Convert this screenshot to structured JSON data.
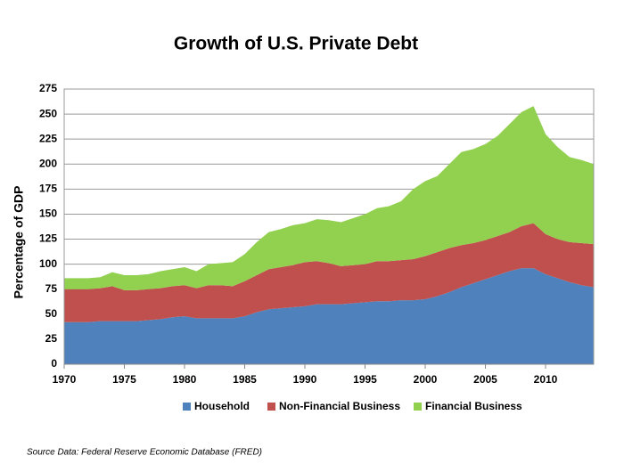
{
  "chart_data": {
    "type": "stacked_area",
    "title": "Growth of U.S. Private Debt",
    "y_label": "Percentage of GDP",
    "source": "Source Data:  Federal Reserve Economic Database (FRED)",
    "x": [
      1970,
      1971,
      1972,
      1973,
      1974,
      1975,
      1976,
      1977,
      1978,
      1979,
      1980,
      1981,
      1982,
      1983,
      1984,
      1985,
      1986,
      1987,
      1988,
      1989,
      1990,
      1991,
      1992,
      1993,
      1994,
      1995,
      1996,
      1997,
      1998,
      1999,
      2000,
      2001,
      2002,
      2003,
      2004,
      2005,
      2006,
      2007,
      2008,
      2009,
      2010,
      2011,
      2012,
      2013,
      2014
    ],
    "series": [
      {
        "name": "Household",
        "color": "#4f81bd",
        "values": [
          42,
          42,
          42,
          43,
          43,
          43,
          43,
          44,
          45,
          47,
          48,
          46,
          46,
          46,
          46,
          48,
          52,
          55,
          56,
          57,
          58,
          60,
          60,
          60,
          61,
          62,
          63,
          63,
          64,
          64,
          65,
          68,
          72,
          77,
          81,
          85,
          89,
          93,
          96,
          96,
          90,
          86,
          82,
          79,
          77
        ]
      },
      {
        "name": "Non-Financial Business",
        "color": "#c0504d",
        "values": [
          33,
          33,
          33,
          33,
          35,
          31,
          31,
          31,
          31,
          31,
          31,
          30,
          33,
          33,
          32,
          35,
          37,
          40,
          41,
          42,
          44,
          43,
          41,
          38,
          38,
          38,
          40,
          40,
          40,
          41,
          43,
          44,
          44,
          42,
          40,
          39,
          39,
          39,
          42,
          45,
          40,
          39,
          40,
          42,
          43
        ]
      },
      {
        "name": "Financial Business",
        "color": "#92d050",
        "values": [
          11,
          11,
          11,
          11,
          14,
          15,
          15,
          15,
          17,
          17,
          18,
          17,
          21,
          22,
          24,
          27,
          33,
          37,
          38,
          40,
          39,
          42,
          43,
          44,
          47,
          50,
          53,
          55,
          59,
          70,
          75,
          76,
          84,
          93,
          94,
          96,
          100,
          108,
          114,
          117,
          100,
          92,
          85,
          83,
          80
        ]
      }
    ],
    "xlim": [
      1970,
      2014
    ],
    "xticks": [
      1970,
      1975,
      1980,
      1985,
      1990,
      1995,
      2000,
      2005,
      2010
    ],
    "ylim": [
      0,
      275
    ],
    "yticks": [
      0,
      25,
      50,
      75,
      100,
      125,
      150,
      175,
      200,
      225,
      250,
      275
    ],
    "grid": true
  }
}
